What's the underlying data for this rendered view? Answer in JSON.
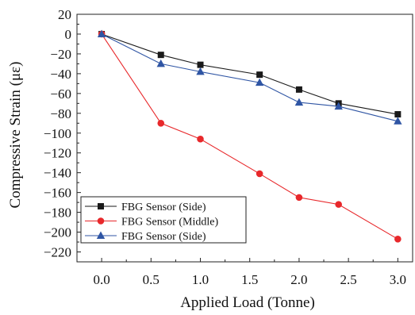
{
  "chart_data": {
    "type": "line",
    "title": "",
    "xlabel": "Applied Load (Tonne)",
    "ylabel": "Compressive Strain (με)",
    "xlim": [
      -0.25,
      3.15
    ],
    "ylim": [
      -230,
      20
    ],
    "xticks": [
      0.0,
      0.5,
      1.0,
      1.5,
      2.0,
      2.5,
      3.0
    ],
    "xtick_labels": [
      "0.0",
      "0.5",
      "1.0",
      "1.5",
      "2.0",
      "2.5",
      "3.0"
    ],
    "yticks": [
      20,
      0,
      -20,
      -40,
      -60,
      -80,
      -100,
      -120,
      -140,
      -160,
      -180,
      -200,
      -220
    ],
    "ytick_labels": [
      "20",
      "0",
      "−20",
      "−40",
      "−60",
      "−80",
      "−100",
      "−120",
      "−140",
      "−160",
      "−180",
      "−200",
      "−220"
    ],
    "grid": false,
    "legend_position": "bottom-left",
    "series": [
      {
        "name": "FBG Sensor (Side)",
        "color": "#1a1a1a",
        "marker": "square",
        "x": [
          0.0,
          0.6,
          1.0,
          1.6,
          2.0,
          2.4,
          3.0
        ],
        "y": [
          0,
          -21,
          -31,
          -41,
          -56,
          -70,
          -81
        ]
      },
      {
        "name": "FBG Sensor (Middle)",
        "color": "#e8282b",
        "marker": "circle",
        "x": [
          0.0,
          0.6,
          1.0,
          1.6,
          2.0,
          2.4,
          3.0
        ],
        "y": [
          0,
          -90,
          -106,
          -141,
          -165,
          -172,
          -207
        ]
      },
      {
        "name": "FBG Sensor (Side)",
        "color": "#2f55a4",
        "marker": "triangle",
        "x": [
          0.0,
          0.6,
          1.0,
          1.6,
          2.0,
          2.4,
          3.0
        ],
        "y": [
          0,
          -30,
          -38,
          -49,
          -69,
          -73,
          -88
        ]
      }
    ]
  }
}
